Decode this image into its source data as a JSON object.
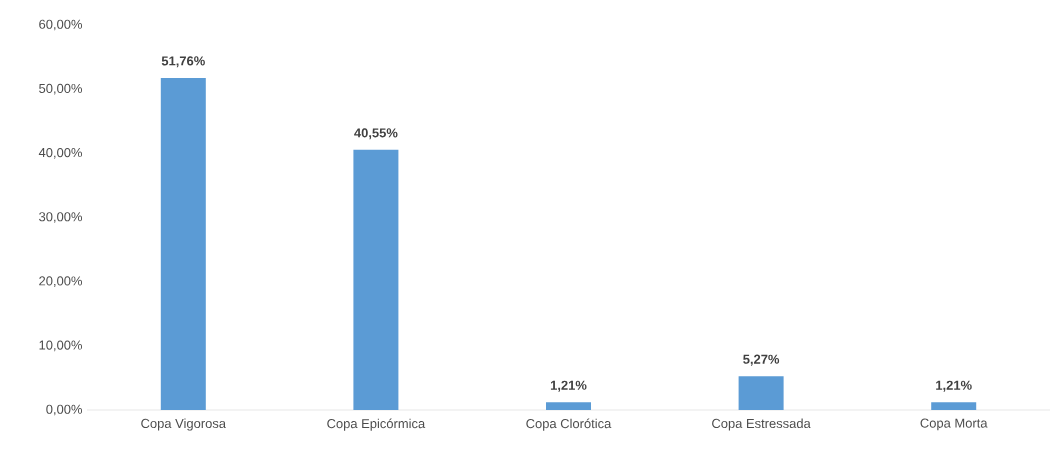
{
  "chart_data": {
    "type": "bar",
    "categories": [
      "Copa Vigorosa",
      "Copa Epicórmica",
      "Copa Clorótica",
      "Copa Estressada",
      "Copa Morta"
    ],
    "values": [
      51.76,
      40.55,
      1.21,
      5.27,
      1.21
    ],
    "value_labels": [
      "51,76%",
      "40,55%",
      "1,21%",
      "5,27%",
      "1,21%"
    ],
    "color": "#5b9bd5",
    "ylim": [
      0,
      60
    ],
    "yticks": [
      {
        "value": 0,
        "label": "0,00%"
      },
      {
        "value": 10,
        "label": "10,00%"
      },
      {
        "value": 20,
        "label": "20,00%"
      },
      {
        "value": 30,
        "label": "30,00%"
      },
      {
        "value": 40,
        "label": "40,00%"
      },
      {
        "value": 50,
        "label": "50,00%"
      },
      {
        "value": 60,
        "label": "60,00%"
      }
    ]
  }
}
